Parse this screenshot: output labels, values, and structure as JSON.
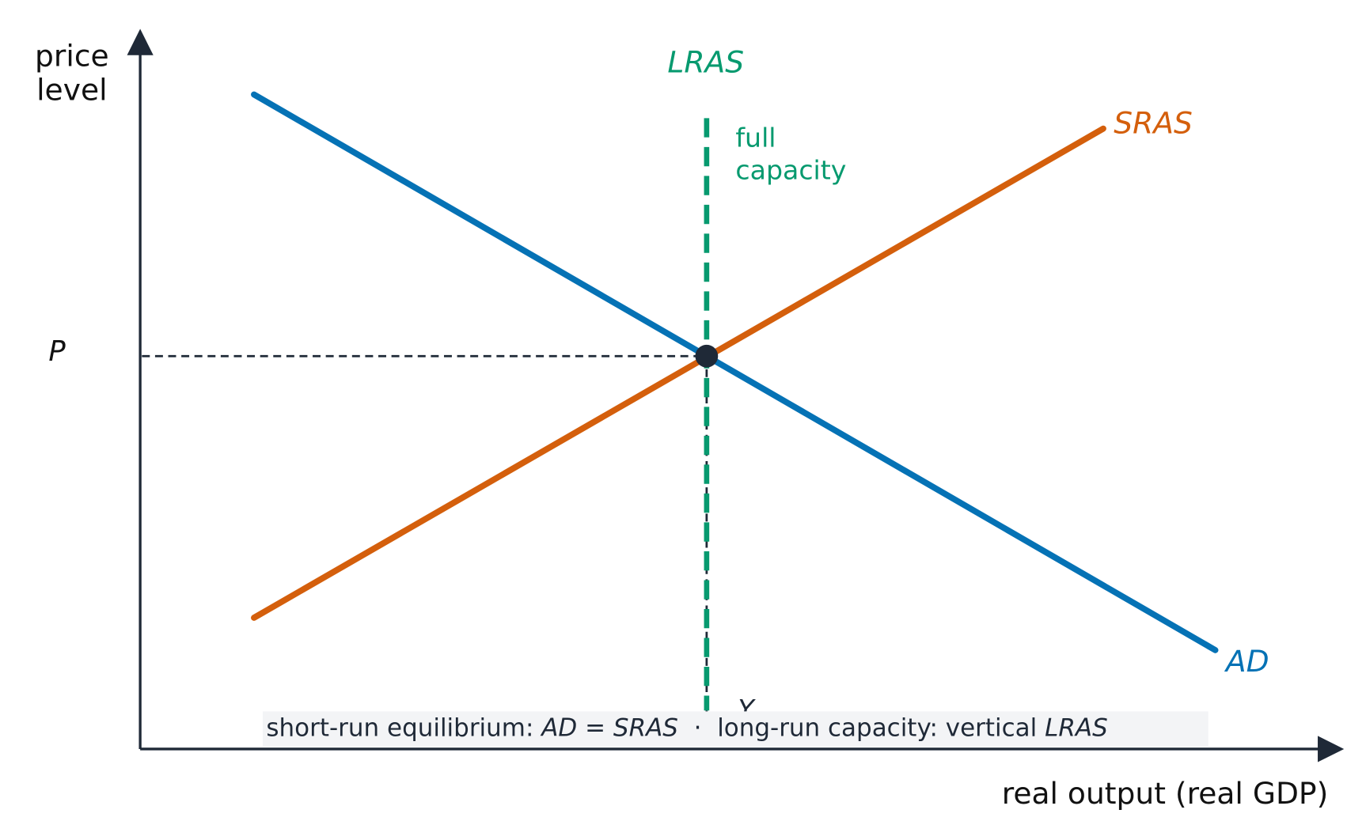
{
  "axes": {
    "y_label": [
      "price",
      "level"
    ],
    "x_label": "real output (real GDP)"
  },
  "curves": [
    {
      "label": "AD"
    },
    {
      "label": "SRAS"
    },
    {
      "label": "LRAS",
      "note": [
        "full",
        "capacity"
      ]
    }
  ],
  "equilibrium": {
    "price_label": "P",
    "output_label": "Y"
  },
  "caption": {
    "parts": [
      "short-run equilibrium: ",
      "AD",
      " = ",
      "SRAS",
      "  ·  ",
      "long-run capacity: vertical ",
      "LRAS"
    ]
  }
}
